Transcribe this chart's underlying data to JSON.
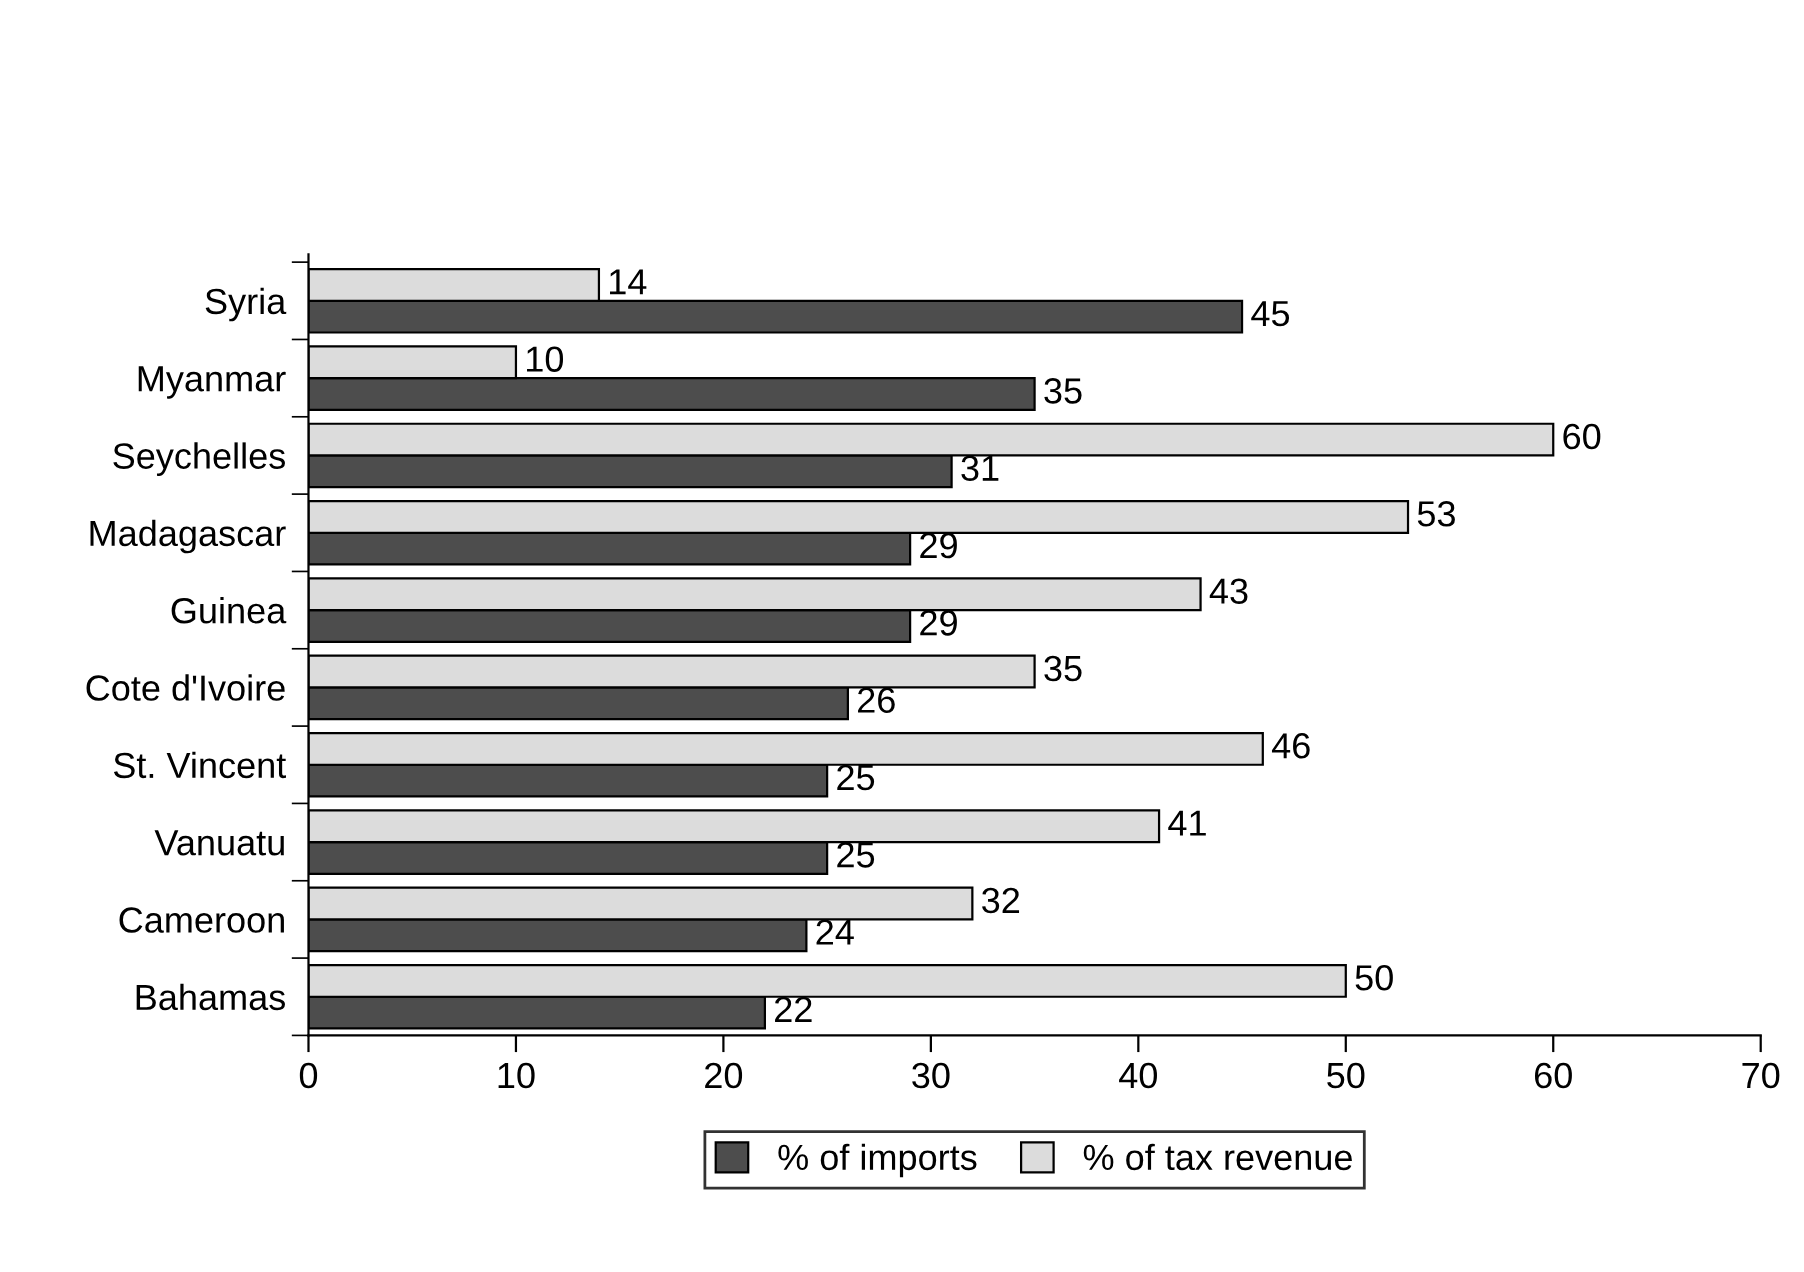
{
  "chart_data": {
    "type": "bar",
    "orientation": "horizontal",
    "categories": [
      "Syria",
      "Myanmar",
      "Seychelles",
      "Madagascar",
      "Guinea",
      "Cote d'Ivoire",
      "St. Vincent",
      "Vanuatu",
      "Cameroon",
      "Bahamas"
    ],
    "series": [
      {
        "name": "% of imports",
        "color": "#4d4d4d",
        "values": [
          45,
          35,
          31,
          29,
          29,
          26,
          25,
          25,
          24,
          22
        ]
      },
      {
        "name": "% of tax revenue",
        "color": "#dcdcdc",
        "values": [
          14,
          10,
          60,
          53,
          43,
          35,
          46,
          41,
          32,
          50
        ]
      }
    ],
    "xlim": [
      0,
      70
    ],
    "xticks": [
      0,
      10,
      20,
      30,
      40,
      50,
      60,
      70
    ],
    "data_labels": true,
    "grid": false,
    "legend": "bottom"
  }
}
